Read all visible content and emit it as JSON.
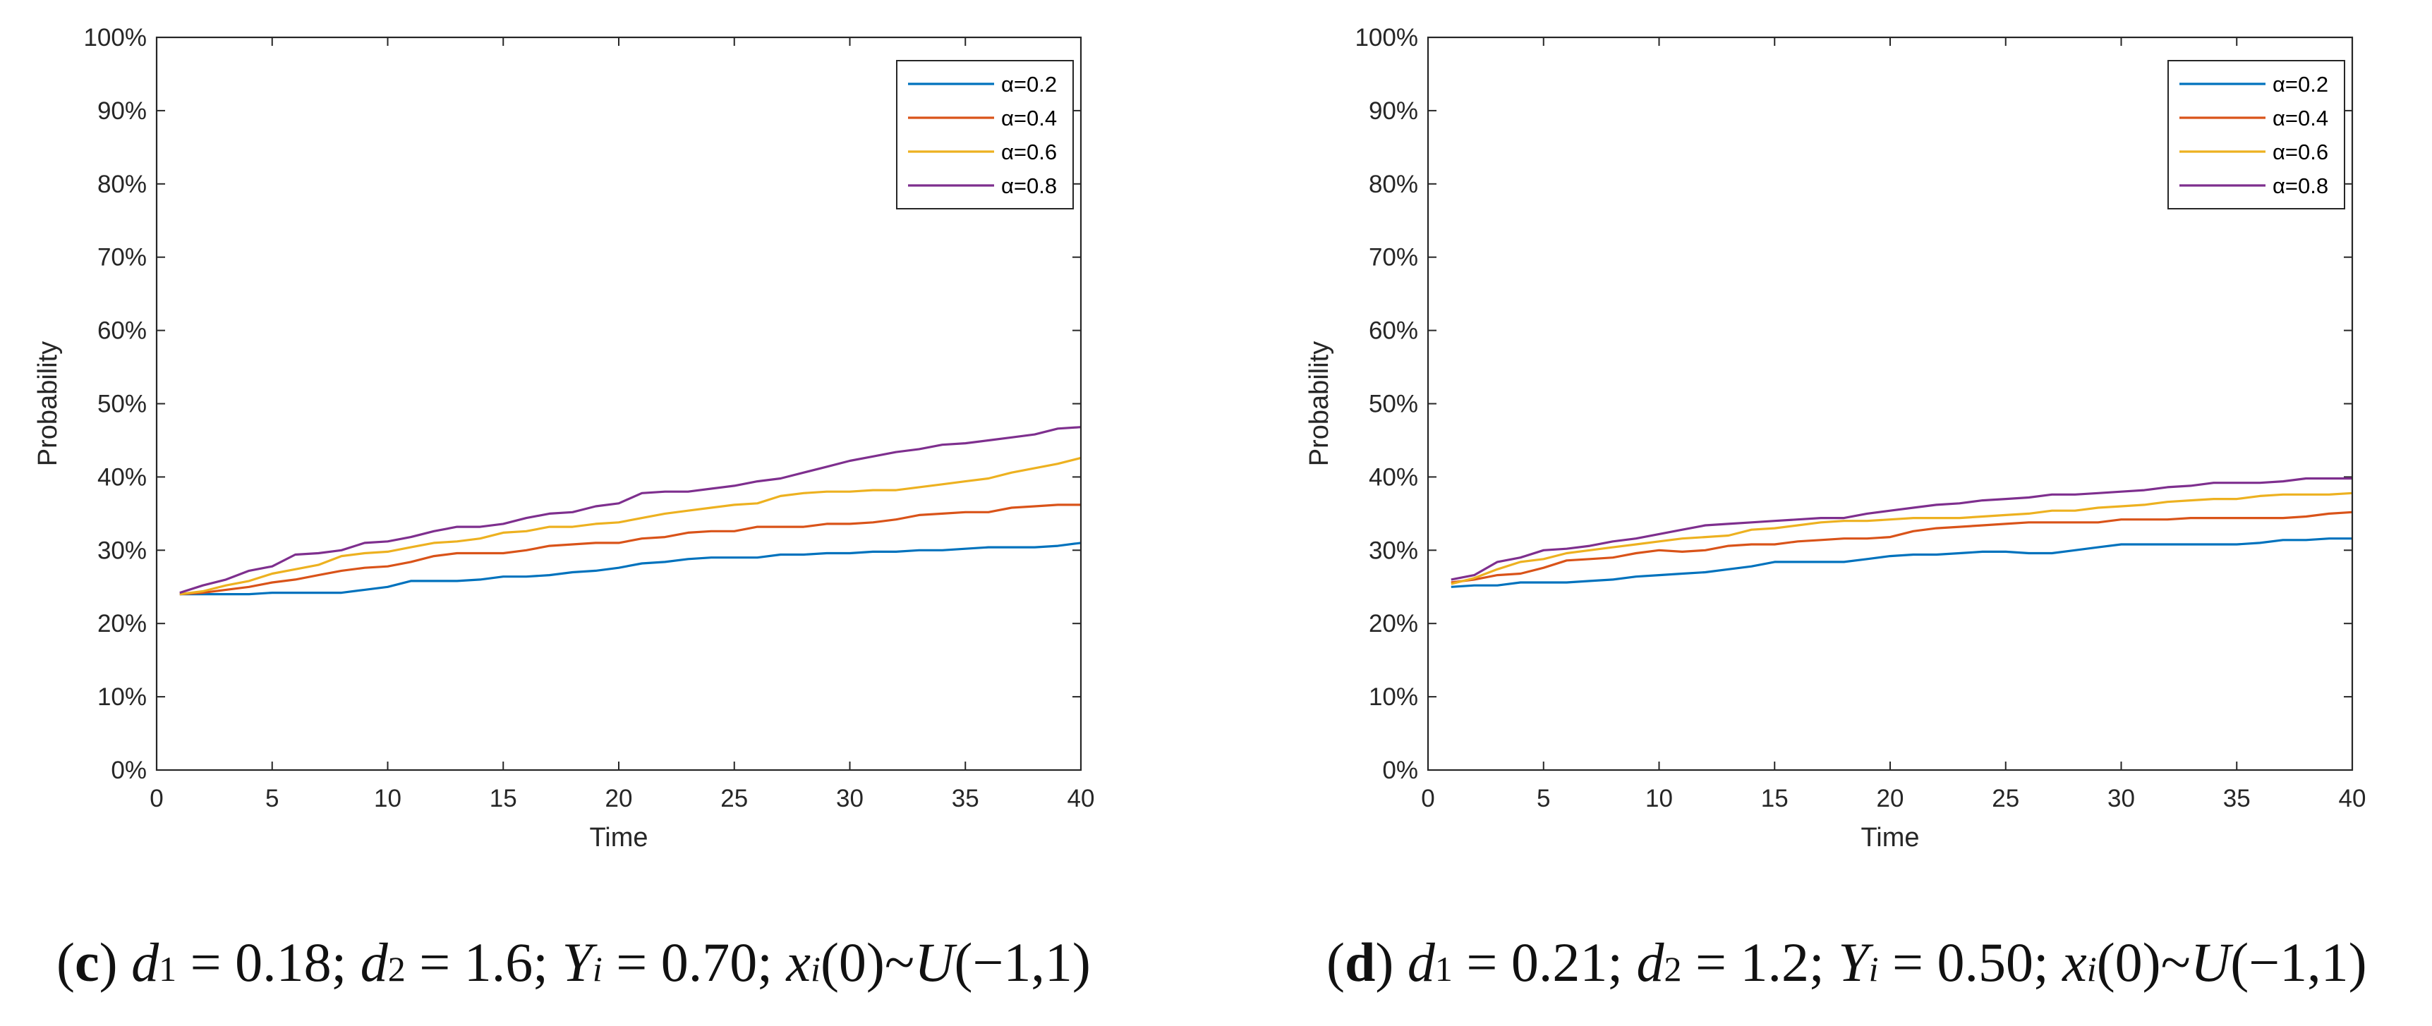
{
  "colors": {
    "a02": "#0072BD",
    "a04": "#D95319",
    "a06": "#EDB120",
    "a08": "#7E2F8E"
  },
  "chart_data": [
    {
      "type": "line",
      "xlabel": "Time",
      "ylabel": "Probability",
      "xlim": [
        0,
        40
      ],
      "ylim": [
        0,
        100
      ],
      "xticks": [
        "0",
        "5",
        "10",
        "15",
        "20",
        "25",
        "30",
        "35",
        "40"
      ],
      "yticks": [
        "0%",
        "10%",
        "20%",
        "30%",
        "40%",
        "50%",
        "60%",
        "70%",
        "80%",
        "90%",
        "100%"
      ],
      "legend_position": "top-right",
      "x": [
        1,
        2,
        3,
        4,
        5,
        6,
        7,
        8,
        9,
        10,
        11,
        12,
        13,
        14,
        15,
        16,
        17,
        18,
        19,
        20,
        21,
        22,
        23,
        24,
        25,
        26,
        27,
        28,
        29,
        30,
        31,
        32,
        33,
        34,
        35,
        36,
        37,
        38,
        39,
        40
      ],
      "series": [
        {
          "name": "α=0.2",
          "values": [
            24,
            24,
            24,
            24,
            24.2,
            24.2,
            24.2,
            24.2,
            24.6,
            25,
            25.8,
            25.8,
            25.8,
            26,
            26.4,
            26.4,
            26.6,
            27,
            27.2,
            27.6,
            28.2,
            28.4,
            28.8,
            29,
            29,
            29,
            29.4,
            29.4,
            29.6,
            29.6,
            29.8,
            29.8,
            30,
            30,
            30.2,
            30.4,
            30.4,
            30.4,
            30.6,
            31
          ]
        },
        {
          "name": "α=0.4",
          "values": [
            24,
            24.2,
            24.6,
            25,
            25.6,
            26,
            26.6,
            27.2,
            27.6,
            27.8,
            28.4,
            29.2,
            29.6,
            29.6,
            29.6,
            30,
            30.6,
            30.8,
            31,
            31,
            31.6,
            31.8,
            32.4,
            32.6,
            32.6,
            33.2,
            33.2,
            33.2,
            33.6,
            33.6,
            33.8,
            34.2,
            34.8,
            35,
            35.2,
            35.2,
            35.8,
            36,
            36.2,
            36.2
          ]
        },
        {
          "name": "α=0.6",
          "values": [
            24,
            24.4,
            25.2,
            25.8,
            26.8,
            27.4,
            28,
            29.2,
            29.6,
            29.8,
            30.4,
            31,
            31.2,
            31.6,
            32.4,
            32.6,
            33.2,
            33.2,
            33.6,
            33.8,
            34.4,
            35,
            35.4,
            35.8,
            36.2,
            36.4,
            37.4,
            37.8,
            38,
            38,
            38.2,
            38.2,
            38.6,
            39,
            39.4,
            39.8,
            40.6,
            41.2,
            41.8,
            42.6
          ]
        },
        {
          "name": "α=0.8",
          "values": [
            24.2,
            25.2,
            26,
            27.2,
            27.8,
            29.4,
            29.6,
            30,
            31,
            31.2,
            31.8,
            32.6,
            33.2,
            33.2,
            33.6,
            34.4,
            35,
            35.2,
            36,
            36.4,
            37.8,
            38,
            38,
            38.4,
            38.8,
            39.4,
            39.8,
            40.6,
            41.4,
            42.2,
            42.8,
            43.4,
            43.8,
            44.4,
            44.6,
            45,
            45.4,
            45.8,
            46.6,
            46.8
          ]
        }
      ]
    },
    {
      "type": "line",
      "xlabel": "Time",
      "ylabel": "Probability",
      "xlim": [
        0,
        40
      ],
      "ylim": [
        0,
        100
      ],
      "xticks": [
        "0",
        "5",
        "10",
        "15",
        "20",
        "25",
        "30",
        "35",
        "40"
      ],
      "yticks": [
        "0%",
        "10%",
        "20%",
        "30%",
        "40%",
        "50%",
        "60%",
        "70%",
        "80%",
        "90%",
        "100%"
      ],
      "legend_position": "top-right",
      "x": [
        1,
        2,
        3,
        4,
        5,
        6,
        7,
        8,
        9,
        10,
        11,
        12,
        13,
        14,
        15,
        16,
        17,
        18,
        19,
        20,
        21,
        22,
        23,
        24,
        25,
        26,
        27,
        28,
        29,
        30,
        31,
        32,
        33,
        34,
        35,
        36,
        37,
        38,
        39,
        40
      ],
      "series": [
        {
          "name": "α=0.2",
          "values": [
            25,
            25.2,
            25.2,
            25.6,
            25.6,
            25.6,
            25.8,
            26,
            26.4,
            26.6,
            26.8,
            27,
            27.4,
            27.8,
            28.4,
            28.4,
            28.4,
            28.4,
            28.8,
            29.2,
            29.4,
            29.4,
            29.6,
            29.8,
            29.8,
            29.6,
            29.6,
            30,
            30.4,
            30.8,
            30.8,
            30.8,
            30.8,
            30.8,
            30.8,
            31,
            31.4,
            31.4,
            31.6,
            31.6
          ]
        },
        {
          "name": "α=0.4",
          "values": [
            25.6,
            26,
            26.6,
            26.8,
            27.6,
            28.6,
            28.8,
            29,
            29.6,
            30,
            29.8,
            30,
            30.6,
            30.8,
            30.8,
            31.2,
            31.4,
            31.6,
            31.6,
            31.8,
            32.6,
            33,
            33.2,
            33.4,
            33.6,
            33.8,
            33.8,
            33.8,
            33.8,
            34.2,
            34.2,
            34.2,
            34.4,
            34.4,
            34.4,
            34.4,
            34.4,
            34.6,
            35,
            35.2
          ]
        },
        {
          "name": "α=0.6",
          "values": [
            25.4,
            26.2,
            27.4,
            28.4,
            28.8,
            29.6,
            30,
            30.4,
            30.8,
            31.2,
            31.6,
            31.8,
            32,
            32.8,
            33,
            33.4,
            33.8,
            34,
            34,
            34.2,
            34.4,
            34.4,
            34.4,
            34.6,
            34.8,
            35,
            35.4,
            35.4,
            35.8,
            36,
            36.2,
            36.6,
            36.8,
            37,
            37,
            37.4,
            37.6,
            37.6,
            37.6,
            37.8
          ]
        },
        {
          "name": "α=0.8",
          "values": [
            26,
            26.6,
            28.4,
            29,
            30,
            30.2,
            30.6,
            31.2,
            31.6,
            32.2,
            32.8,
            33.4,
            33.6,
            33.8,
            34,
            34.2,
            34.4,
            34.4,
            35,
            35.4,
            35.8,
            36.2,
            36.4,
            36.8,
            37,
            37.2,
            37.6,
            37.6,
            37.8,
            38,
            38.2,
            38.6,
            38.8,
            39.2,
            39.2,
            39.2,
            39.4,
            39.8,
            39.8,
            39.8
          ]
        }
      ]
    }
  ],
  "captions": [
    {
      "letter": "c",
      "d1_sym": "d",
      "d1_sub": "1",
      "d1_val": " = 0.18; ",
      "d2_sym": "d",
      "d2_sub": "2",
      "d2_val": " = 1.6; ",
      "y_sym": "Y",
      "y_sub": "i",
      "y_val": " = 0.70; ",
      "x_sym": "x",
      "x_sub": "i",
      "x_rest": "(0)~",
      "u_sym": "U",
      "u_rest": "(−1,1)"
    },
    {
      "letter": "d",
      "d1_sym": "d",
      "d1_sub": "1",
      "d1_val": " = 0.21; ",
      "d2_sym": "d",
      "d2_sub": "2",
      "d2_val": " = 1.2; ",
      "y_sym": "Y",
      "y_sub": "i",
      "y_val": " = 0.50; ",
      "x_sym": "x",
      "x_sub": "i",
      "x_rest": "(0)~",
      "u_sym": "U",
      "u_rest": "(−1,1)"
    }
  ]
}
